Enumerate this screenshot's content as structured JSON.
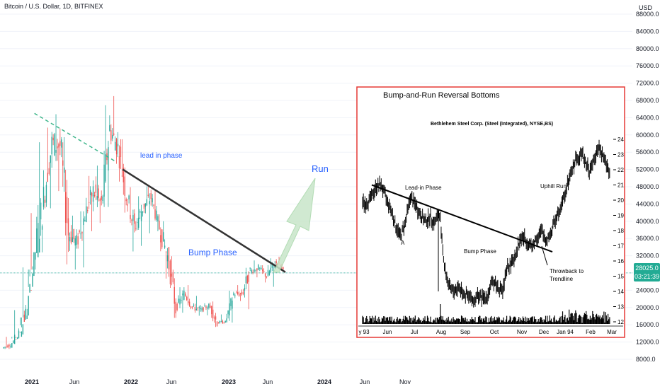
{
  "title": "Bitcoin / U.S. Dollar, 1D, BITFINEX",
  "currency": "USD",
  "current_price": "28025.0",
  "countdown": "03:21:39",
  "colors": {
    "up": "#26a69a",
    "down": "#ef5350",
    "price_line": "#22ab94",
    "trendline": "#333333",
    "lead_in_dashed": "#3fb68b",
    "annotation": "#2962ff",
    "run_arrow": "#c8e6c9",
    "inset_border": "#e53935"
  },
  "annotations": {
    "lead_in": "lead in phase",
    "bump": "Bump Phase",
    "run": "Run"
  },
  "chart_data": [
    {
      "type": "candlestick",
      "title": "Bitcoin / U.S. Dollar, 1D, BITFINEX",
      "ylabel": "USD",
      "ylim": [
        6000,
        90000
      ],
      "y_ticks": [
        "8000.0",
        "12000.0",
        "16000.0",
        "20000.0",
        "24000.0",
        "28000.0",
        "32000.0",
        "36000.0",
        "40000.0",
        "44000.0",
        "48000.0",
        "52000.0",
        "56000.0",
        "60000.0",
        "64000.0",
        "68000.0",
        "72000.0",
        "76000.0",
        "80000.0",
        "84000.0",
        "88000.0"
      ],
      "x_ticks": [
        "2021",
        "Jun",
        "2022",
        "Jun",
        "2023",
        "Jun",
        "2024",
        "Jun",
        "Nov"
      ],
      "series": [
        {
          "name": "BTCUSD",
          "dates": [
            "2020-10",
            "2020-11",
            "2020-12",
            "2021-01",
            "2021-02",
            "2021-03",
            "2021-04",
            "2021-05",
            "2021-06",
            "2021-07",
            "2021-08",
            "2021-09",
            "2021-10",
            "2021-11",
            "2021-12",
            "2022-01",
            "2022-02",
            "2022-03",
            "2022-04",
            "2022-05",
            "2022-06",
            "2022-07",
            "2022-08",
            "2022-09",
            "2022-10",
            "2022-11",
            "2022-12",
            "2023-01",
            "2023-02",
            "2023-03",
            "2023-04",
            "2023-05",
            "2023-06",
            "2023-07"
          ],
          "close": [
            11500,
            13800,
            19200,
            33000,
            45000,
            58000,
            57500,
            37300,
            35000,
            41500,
            47100,
            43800,
            61300,
            57000,
            46200,
            38500,
            43200,
            45500,
            38500,
            31800,
            19900,
            23300,
            20000,
            19400,
            20500,
            16500,
            16600,
            23100,
            23100,
            28400,
            29200,
            27200,
            30500,
            29300
          ],
          "high": [
            13200,
            19400,
            29300,
            41900,
            58300,
            61700,
            64800,
            59500,
            41300,
            42300,
            50500,
            52900,
            66900,
            69000,
            59000,
            47900,
            45800,
            48100,
            47400,
            40000,
            31900,
            24700,
            25200,
            22700,
            21000,
            21400,
            18400,
            23900,
            25200,
            29200,
            30900,
            29800,
            31400,
            31800
          ],
          "low": [
            10400,
            13200,
            17700,
            28800,
            32800,
            43000,
            47000,
            30000,
            28800,
            29300,
            37700,
            39600,
            43300,
            53300,
            42000,
            33000,
            34300,
            37200,
            37700,
            26700,
            17600,
            18800,
            19600,
            18100,
            18200,
            15500,
            16300,
            16500,
            21500,
            19600,
            27000,
            25800,
            24800,
            28900
          ]
        }
      ],
      "trendline": {
        "from": [
          "2021-12",
          52000
        ],
        "to": [
          "2023-07",
          28200
        ]
      },
      "lead_in_line": {
        "from": [
          "2021-02",
          65000
        ],
        "to": [
          "2021-11",
          54000
        ]
      },
      "current_price": 28025.0
    },
    {
      "type": "bar",
      "title": "Bump-and-Run Reversal Bottoms",
      "subtitle": "Bethlehem Steel Corp. (Steel (Integrated),  NYSE,BS)",
      "ylim": [
        11.5,
        24.5
      ],
      "y_ticks": [
        "12",
        "13",
        "14",
        "15",
        "16",
        "17",
        "18",
        "19",
        "20",
        "21",
        "22",
        "23",
        "24"
      ],
      "x_ticks": [
        "y 93",
        "Jun",
        "Jul",
        "Aug",
        "Sep",
        "Oct",
        "Nov",
        "Dec",
        "Jan 94",
        "Feb",
        "Mar"
      ],
      "series": [
        {
          "name": "BS",
          "values": [
            19.8,
            20.2,
            20.9,
            21.0,
            20.1,
            19.4,
            18.3,
            17.6,
            18.6,
            20.2,
            19.7,
            19.1,
            18.6,
            18.9,
            18.5,
            19.2,
            15.6,
            14.2,
            14.0,
            14.3,
            13.9,
            13.6,
            13.4,
            13.7,
            13.5,
            13.8,
            14.7,
            14.3,
            14.0,
            15.6,
            15.9,
            16.9,
            17.6,
            17.3,
            16.9,
            17.6,
            17.9,
            17.4,
            17.9,
            18.9,
            19.7,
            20.6,
            21.7,
            22.6,
            23.1,
            22.6,
            21.9,
            22.9,
            23.4,
            22.6,
            21.9
          ]
        }
      ],
      "annotations": [
        "Lead-in Phase",
        "A",
        "Bump Phase",
        "Uphill Run",
        "Throwback to\nTrendline"
      ]
    }
  ]
}
